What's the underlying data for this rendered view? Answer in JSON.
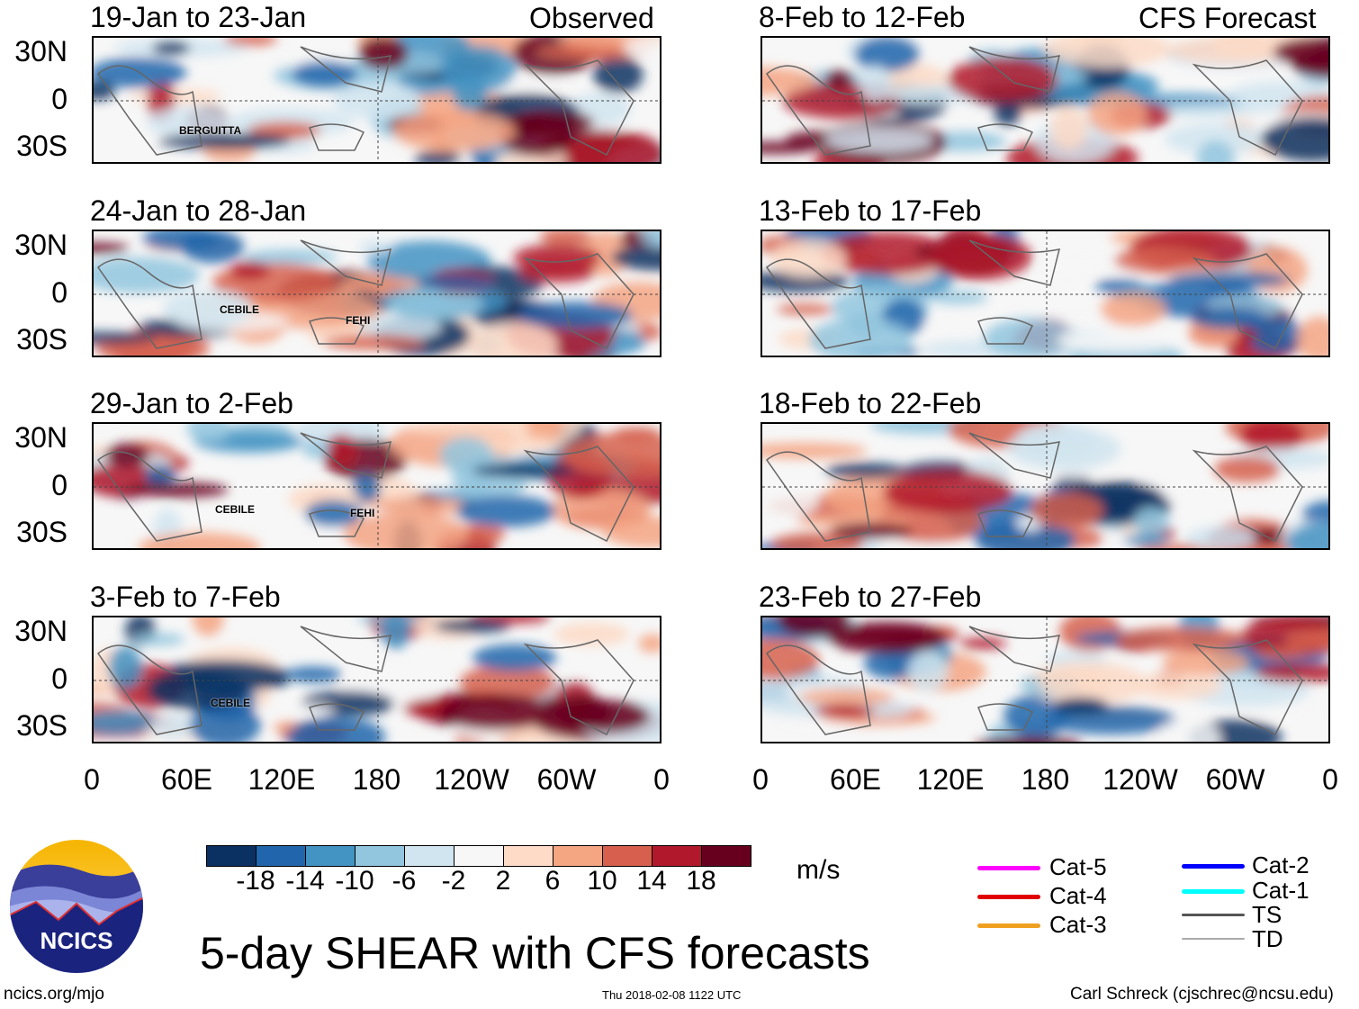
{
  "title": "5-day SHEAR with CFS forecasts",
  "columns": {
    "observed_label": "Observed",
    "forecast_label": "CFS Forecast"
  },
  "panels": {
    "observed": [
      {
        "title": "19-Jan to 23-Jan",
        "storms": [
          "BERGUITTA"
        ]
      },
      {
        "title": "24-Jan to 28-Jan",
        "storms": [
          "CEBILE",
          "FEHI"
        ]
      },
      {
        "title": "29-Jan to 2-Feb",
        "storms": [
          "CEBILE",
          "FEHI"
        ]
      },
      {
        "title": "3-Feb to 7-Feb",
        "storms": [
          "CEBILE"
        ]
      }
    ],
    "forecast": [
      {
        "title": "8-Feb to 12-Feb"
      },
      {
        "title": "13-Feb to 17-Feb"
      },
      {
        "title": "18-Feb to 22-Feb"
      },
      {
        "title": "23-Feb to 27-Feb"
      }
    ]
  },
  "lat_ticks": [
    "30N",
    "0",
    "30S"
  ],
  "lon_ticks": [
    "0",
    "60E",
    "120E",
    "180",
    "120W",
    "60W",
    "0"
  ],
  "colorbar": {
    "unit": "m/s",
    "labels": [
      "-18",
      "-14",
      "-10",
      "-6",
      "-2",
      "2",
      "6",
      "10",
      "14",
      "18"
    ],
    "colors": [
      "#0a3162",
      "#2166ac",
      "#4393c3",
      "#92c5de",
      "#d1e5f0",
      "#f7f7f7",
      "#fddbc7",
      "#f4a582",
      "#d6604d",
      "#b2182b",
      "#67001f"
    ]
  },
  "legend": [
    {
      "label": "Cat-5",
      "color": "#ff00ff"
    },
    {
      "label": "Cat-4",
      "color": "#e00000"
    },
    {
      "label": "Cat-3",
      "color": "#f0a020"
    },
    {
      "label": "Cat-2",
      "color": "#0000ff"
    },
    {
      "label": "Cat-1",
      "color": "#00ffff"
    },
    {
      "label": "TS",
      "color": "#555555"
    },
    {
      "label": "TD",
      "color": "#aaaaaa"
    }
  ],
  "logo": {
    "text": "NCICS"
  },
  "footer": {
    "url": "ncics.org/mjo",
    "timestamp": "Thu 2018-02-08 1122 UTC",
    "author": "Carl Schreck (cjschrec@ncsu.edu)"
  }
}
